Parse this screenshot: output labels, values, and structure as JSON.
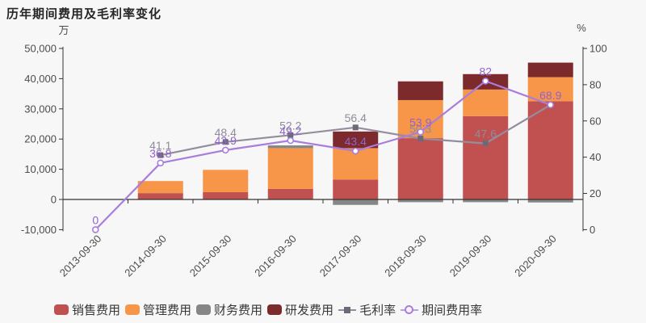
{
  "chart_data": {
    "type": "bar",
    "subtype": "stacked-bars-with-percentage-lines",
    "title": "历年期间费用及毛利率变化",
    "grid": false,
    "legend_position": "bottom",
    "categories": [
      "2013-09-30",
      "2014-09-30",
      "2015-09-30",
      "2016-09-30",
      "2017-09-30",
      "2018-09-30",
      "2019-09-30",
      "2020-09-30"
    ],
    "left_axis": {
      "unit": "万",
      "ylim": [
        -10000,
        50000
      ],
      "ticks": [
        {
          "v": 50000,
          "label": "50,000"
        },
        {
          "v": 40000,
          "label": "40,000"
        },
        {
          "v": 30000,
          "label": "30,000"
        },
        {
          "v": 20000,
          "label": "20,000"
        },
        {
          "v": 10000,
          "label": "10,000"
        },
        {
          "v": 0,
          "label": "0"
        },
        {
          "v": -10000,
          "label": "-10,000"
        }
      ]
    },
    "right_axis": {
      "unit": "%",
      "ylim": [
        0,
        100
      ],
      "ticks": [
        {
          "v": 100,
          "label": "100"
        },
        {
          "v": 80,
          "label": "80"
        },
        {
          "v": 60,
          "label": "60"
        },
        {
          "v": 40,
          "label": "40"
        },
        {
          "v": 20,
          "label": "20"
        },
        {
          "v": 0,
          "label": "0"
        }
      ]
    },
    "series": [
      {
        "key": "sales-expense",
        "name": "销售费用",
        "stack": true,
        "color": "#c15150",
        "values": [
          0,
          2100,
          2400,
          3500,
          6600,
          20300,
          27600,
          32500
        ]
      },
      {
        "key": "admin-expense",
        "name": "管理费用",
        "stack": true,
        "color": "#f79549",
        "values": [
          0,
          4000,
          7400,
          13500,
          10400,
          12600,
          8800,
          8000
        ]
      },
      {
        "key": "finance-expense",
        "name": "财务费用",
        "stack": true,
        "color": "#868686",
        "values": [
          0,
          0,
          0,
          900,
          -1800,
          -900,
          -900,
          -1000
        ]
      },
      {
        "key": "rd-expense",
        "name": "研发费用",
        "stack": true,
        "color": "#7c2a2b",
        "values": [
          0,
          0,
          0,
          0,
          5500,
          6200,
          5100,
          4800
        ]
      }
    ],
    "line_series": [
      {
        "key": "gross-margin",
        "name": "毛利率",
        "axis": "right",
        "color": "#938d9d",
        "marker": "square",
        "marker_color": "#6f6878",
        "label_color": "#8f8b99",
        "values": [
          null,
          41.1,
          48.4,
          52.2,
          56.4,
          50.3,
          47.6,
          68.9
        ],
        "labels": [
          null,
          "41.1",
          "48.4",
          "52.2",
          "56.4",
          "50.3",
          "47.6",
          null
        ]
      },
      {
        "key": "period-expense-ratio",
        "name": "期间费用率",
        "axis": "right",
        "color": "#a87ddc",
        "marker": "circle",
        "marker_color": "#ffffff",
        "label_color": "#9163cd",
        "values": [
          0,
          36.8,
          43.9,
          49.2,
          43.4,
          53.9,
          82,
          68.9
        ],
        "labels": [
          "0",
          "36.8",
          "43.9",
          "49.2",
          "43.4",
          "53.9",
          "82",
          "68.9"
        ]
      }
    ]
  },
  "legend": {
    "items": [
      {
        "key": "sales-expense",
        "label": "销售费用",
        "type": "rect",
        "color": "#c15150"
      },
      {
        "key": "admin-expense",
        "label": "管理费用",
        "type": "rect",
        "color": "#f79549"
      },
      {
        "key": "finance-expense",
        "label": "财务费用",
        "type": "rect",
        "color": "#868686"
      },
      {
        "key": "rd-expense",
        "label": "研发费用",
        "type": "rect",
        "color": "#7c2a2b"
      },
      {
        "key": "gross-margin",
        "label": "毛利率",
        "type": "line-square",
        "line_color": "#938d9d",
        "marker_color": "#6f6878"
      },
      {
        "key": "period-expense-ratio",
        "label": "期间费用率",
        "type": "line-circle",
        "line_color": "#b9a1e0",
        "marker_color": "#a87ddc"
      }
    ]
  },
  "colors": {
    "background": "#f7f7f8",
    "axis": "#333333",
    "tick_text": "#4c4c4c",
    "title_text": "#262626"
  }
}
